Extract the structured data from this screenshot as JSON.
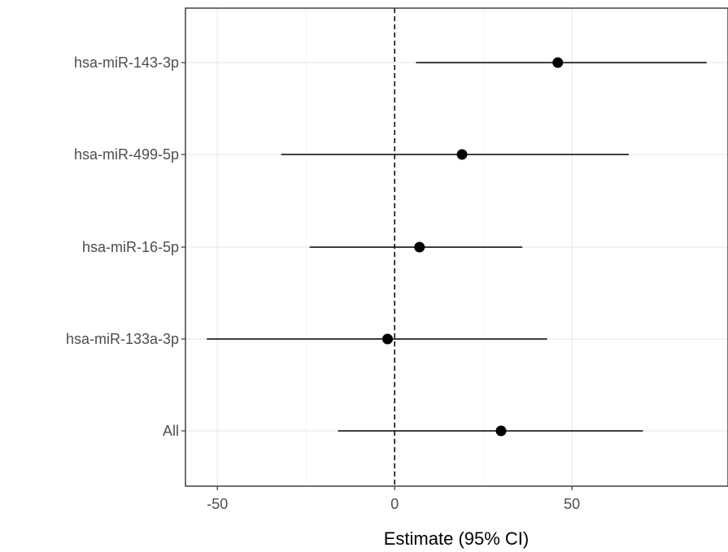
{
  "chart_data": {
    "type": "scatter",
    "subtype": "forest-plot",
    "title": "",
    "xlabel": "Estimate (95% CI)",
    "ylabel": "",
    "xlim": [
      -59,
      94
    ],
    "xticks": [
      -50,
      0,
      50
    ],
    "xtick_labels": [
      "-50",
      "0",
      "50"
    ],
    "reference_line": 0,
    "grid": true,
    "legend": "none",
    "categories": [
      "hsa-miR-143-3p",
      "hsa-miR-499-5p",
      "hsa-miR-16-5p",
      "hsa-miR-133a-3p",
      "All"
    ],
    "series": [
      {
        "estimate": [
          46,
          19,
          7,
          -2,
          30
        ],
        "lower": [
          6,
          -32,
          -24,
          -53,
          -16
        ],
        "upper": [
          88,
          66,
          36,
          43,
          70
        ]
      }
    ],
    "colors": {
      "point": "#000000",
      "interval": "#000000",
      "grid": "#ebebeb",
      "panel_border": "#333333",
      "reference_line": "#000000"
    }
  }
}
